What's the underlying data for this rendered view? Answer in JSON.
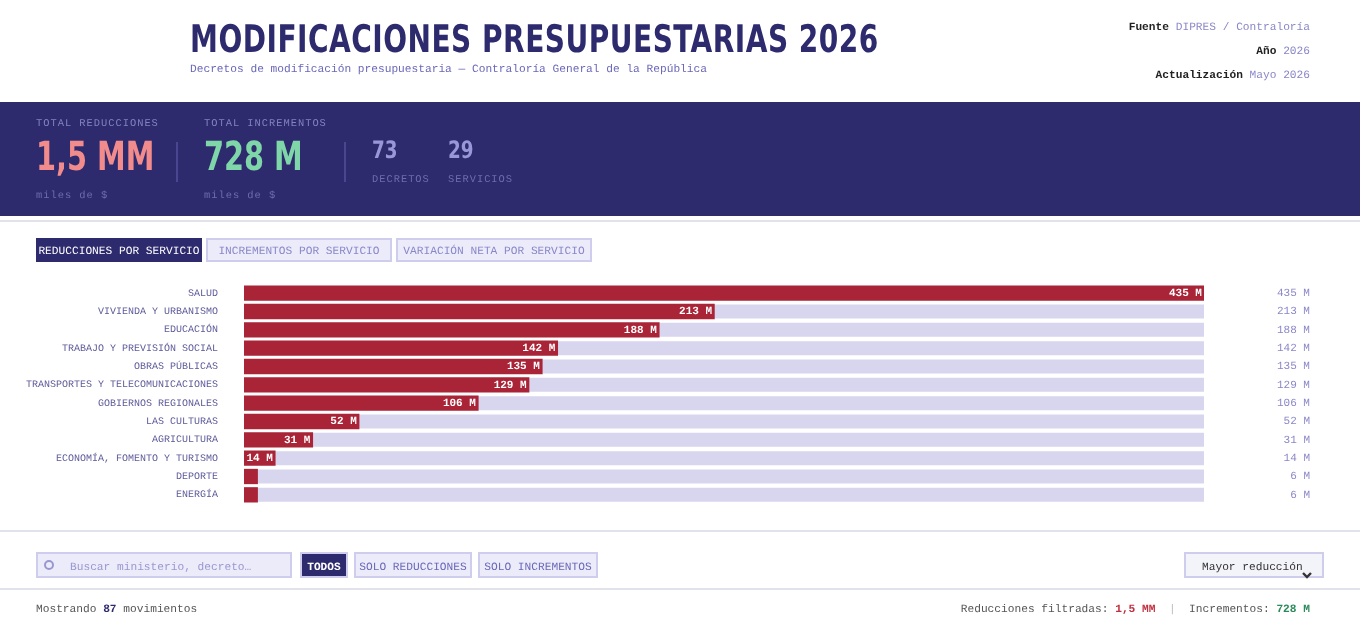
{
  "chart_data": {
    "type": "bar",
    "orientation": "horizontal",
    "title": "MODIFICACIONES PRESUPUESTARIAS 2026",
    "subtitle": "Decretos de modificación presupuestaria — Contraloría General de la República",
    "categories": [
      "SALUD",
      "VIVIENDA Y URBANISMO",
      "EDUCACIÓN",
      "TRABAJO Y PREVISIÓN SOCIAL",
      "OBRAS PÚBLICAS",
      "TRANSPORTES Y TELECOMUNICACIONES",
      "GOBIERNOS REGIONALES",
      "LAS CULTURAS",
      "AGRICULTURA",
      "ECONOMÍA, FOMENTO Y TURISMO",
      "DEPORTE",
      "ENERGÍA"
    ],
    "values": [
      435,
      213,
      188,
      142,
      135,
      129,
      106,
      52,
      31,
      14,
      6,
      6
    ],
    "value_labels": [
      "435 M",
      "213 M",
      "188 M",
      "142 M",
      "135 M",
      "129 M",
      "106 M",
      "52 M",
      "31 M",
      "14 M",
      "6 M",
      "6 M"
    ],
    "color": "#aa2437",
    "legend": false,
    "tick_labels": "y",
    "annotations": [
      "Fuente",
      "DIPRES / Contraloría",
      "Año",
      "2026",
      "Actualización",
      "Mayo 2026",
      "TOTAL REDUCCIONES",
      "1,5 MM",
      "miles de $",
      "TOTAL INCREMENTOS",
      "728 M",
      "miles de $",
      "73",
      "DECRETOS",
      "29",
      "SERVICIOS",
      "REDUCCIONES POR SERVICIO",
      "INCREMENTOS POR SERVICIO",
      "VARIACIÓN NETA POR SERVICIO",
      "Buscar ministerio, decreto…",
      "TODOS",
      "SOLO REDUCCIONES",
      "SOLO INCREMENTOS",
      "Mayor reducción",
      "Mostrando",
      "87",
      "movimientos",
      "Reducciones filtradas:",
      "1,5 MM",
      "|",
      "Incrementos:",
      "728 M"
    ]
  }
}
